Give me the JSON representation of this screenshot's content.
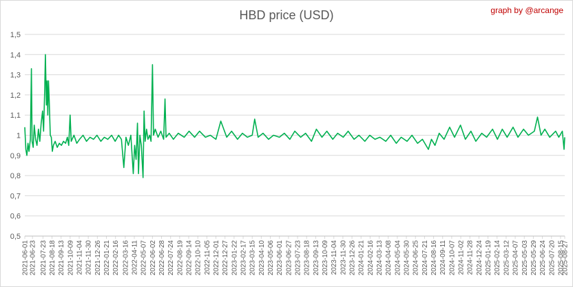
{
  "chart_data": {
    "type": "line",
    "title": "HBD price (USD)",
    "credit": "graph by @arcange",
    "xlabel": "",
    "ylabel": "",
    "ylim": [
      0.5,
      1.5
    ],
    "yticks": [
      "0,5",
      "0,6",
      "0,7",
      "0,8",
      "0,9",
      "1",
      "1,1",
      "1,2",
      "1,3",
      "1,4",
      "1,5"
    ],
    "grid": true,
    "legend": "none",
    "color": "#00b050",
    "x_tick_labels": [
      "2021-06-01",
      "2021-06-23",
      "2021-07-23",
      "2021-08-18",
      "2021-09-13",
      "2021-10-09",
      "2021-11-04",
      "2021-11-30",
      "2021-12-26",
      "2022-01-21",
      "2022-02-16",
      "2022-03-16",
      "2022-04-11",
      "2022-05-07",
      "2022-06-02",
      "2022-06-28",
      "2022-07-24",
      "2022-08-19",
      "2022-09-14",
      "2022-10-10",
      "2022-11-05",
      "2022-12-01",
      "2022-12-27",
      "2023-01-22",
      "2023-02-17",
      "2023-03-15",
      "2023-04-10",
      "2023-05-06",
      "2023-06-01",
      "2023-06-27",
      "2023-07-23",
      "2023-08-18",
      "2023-09-13",
      "2023-10-09",
      "2023-11-04",
      "2023-11-30",
      "2023-12-26",
      "2024-01-21",
      "2024-02-16",
      "2024-03-13",
      "2024-04-08",
      "2024-05-04",
      "2024-05-30",
      "2024-06-25",
      "2024-07-21",
      "2024-08-16",
      "2024-09-11",
      "2024-10-07",
      "2024-11-02",
      "2024-11-28",
      "2024-12-24",
      "2025-01-19",
      "2025-02-14",
      "2025-03-12",
      "2025-04-07",
      "2025-05-03",
      "2025-05-29",
      "2025-06-24",
      "2025-07-20",
      "2025-08-15",
      "2025-08-27"
    ],
    "series": [
      {
        "points": [
          [
            "2021-06-01",
            1.04
          ],
          [
            "2021-06-04",
            0.93
          ],
          [
            "2021-06-07",
            0.9
          ],
          [
            "2021-06-10",
            0.96
          ],
          [
            "2021-06-13",
            0.92
          ],
          [
            "2021-06-17",
            0.98
          ],
          [
            "2021-06-20",
            1.33
          ],
          [
            "2021-06-22",
            0.97
          ],
          [
            "2021-06-25",
            0.94
          ],
          [
            "2021-06-28",
            1.05
          ],
          [
            "2021-07-02",
            0.98
          ],
          [
            "2021-07-06",
            0.95
          ],
          [
            "2021-07-10",
            1.03
          ],
          [
            "2021-07-14",
            0.97
          ],
          [
            "2021-07-18",
            1.06
          ],
          [
            "2021-07-22",
            1.12
          ],
          [
            "2021-07-25",
            1.02
          ],
          [
            "2021-07-28",
            1.22
          ],
          [
            "2021-07-30",
            1.4
          ],
          [
            "2021-08-02",
            1.15
          ],
          [
            "2021-08-04",
            1.27
          ],
          [
            "2021-08-06",
            1.1
          ],
          [
            "2021-08-08",
            1.27
          ],
          [
            "2021-08-10",
            1.17
          ],
          [
            "2021-08-13",
            1.0
          ],
          [
            "2021-08-16",
            0.99
          ],
          [
            "2021-08-19",
            0.92
          ],
          [
            "2021-08-22",
            0.95
          ],
          [
            "2021-08-27",
            0.97
          ],
          [
            "2021-09-02",
            0.94
          ],
          [
            "2021-09-08",
            0.96
          ],
          [
            "2021-09-14",
            0.95
          ],
          [
            "2021-09-20",
            0.97
          ],
          [
            "2021-09-26",
            0.96
          ],
          [
            "2021-10-01",
            0.99
          ],
          [
            "2021-10-05",
            0.95
          ],
          [
            "2021-10-09",
            1.1
          ],
          [
            "2021-10-12",
            0.97
          ],
          [
            "2021-10-20",
            1.0
          ],
          [
            "2021-10-28",
            0.96
          ],
          [
            "2021-11-05",
            0.98
          ],
          [
            "2021-11-15",
            1.0
          ],
          [
            "2021-11-25",
            0.97
          ],
          [
            "2021-12-05",
            0.99
          ],
          [
            "2021-12-15",
            0.98
          ],
          [
            "2021-12-25",
            1.0
          ],
          [
            "2022-01-05",
            0.97
          ],
          [
            "2022-01-15",
            0.99
          ],
          [
            "2022-01-25",
            0.98
          ],
          [
            "2022-02-05",
            1.0
          ],
          [
            "2022-02-15",
            0.97
          ],
          [
            "2022-02-25",
            1.0
          ],
          [
            "2022-03-05",
            0.98
          ],
          [
            "2022-03-12",
            0.84
          ],
          [
            "2022-03-18",
            0.99
          ],
          [
            "2022-03-25",
            0.95
          ],
          [
            "2022-04-01",
            1.0
          ],
          [
            "2022-04-08",
            0.81
          ],
          [
            "2022-04-12",
            0.95
          ],
          [
            "2022-04-16",
            0.88
          ],
          [
            "2022-04-20",
            1.06
          ],
          [
            "2022-04-23",
            0.81
          ],
          [
            "2022-04-27",
            1.0
          ],
          [
            "2022-05-01",
            0.95
          ],
          [
            "2022-05-06",
            0.79
          ],
          [
            "2022-05-09",
            1.12
          ],
          [
            "2022-05-12",
            0.97
          ],
          [
            "2022-05-16",
            1.03
          ],
          [
            "2022-05-20",
            0.98
          ],
          [
            "2022-05-25",
            1.0
          ],
          [
            "2022-05-29",
            0.97
          ],
          [
            "2022-06-02",
            1.35
          ],
          [
            "2022-06-05",
            1.0
          ],
          [
            "2022-06-10",
            1.03
          ],
          [
            "2022-06-18",
            0.99
          ],
          [
            "2022-06-26",
            1.02
          ],
          [
            "2022-07-04",
            0.98
          ],
          [
            "2022-07-08",
            1.18
          ],
          [
            "2022-07-11",
            0.99
          ],
          [
            "2022-07-20",
            1.01
          ],
          [
            "2022-08-01",
            0.98
          ],
          [
            "2022-08-15",
            1.01
          ],
          [
            "2022-09-01",
            0.99
          ],
          [
            "2022-09-15",
            1.02
          ],
          [
            "2022-10-01",
            0.99
          ],
          [
            "2022-10-15",
            1.02
          ],
          [
            "2022-11-01",
            0.99
          ],
          [
            "2022-11-15",
            1.0
          ],
          [
            "2022-12-01",
            0.98
          ],
          [
            "2022-12-15",
            1.07
          ],
          [
            "2023-01-01",
            0.99
          ],
          [
            "2023-01-15",
            1.02
          ],
          [
            "2023-02-01",
            0.98
          ],
          [
            "2023-02-15",
            1.01
          ],
          [
            "2023-03-01",
            0.99
          ],
          [
            "2023-03-15",
            1.0
          ],
          [
            "2023-03-22",
            1.08
          ],
          [
            "2023-04-01",
            0.99
          ],
          [
            "2023-04-15",
            1.01
          ],
          [
            "2023-05-01",
            0.98
          ],
          [
            "2023-05-15",
            1.0
          ],
          [
            "2023-06-01",
            0.99
          ],
          [
            "2023-06-15",
            1.01
          ],
          [
            "2023-07-01",
            0.98
          ],
          [
            "2023-07-15",
            1.02
          ],
          [
            "2023-08-01",
            0.99
          ],
          [
            "2023-08-15",
            1.01
          ],
          [
            "2023-09-01",
            0.97
          ],
          [
            "2023-09-15",
            1.03
          ],
          [
            "2023-10-01",
            0.99
          ],
          [
            "2023-10-15",
            1.02
          ],
          [
            "2023-11-01",
            0.98
          ],
          [
            "2023-11-15",
            1.01
          ],
          [
            "2023-12-01",
            0.99
          ],
          [
            "2023-12-15",
            1.02
          ],
          [
            "2024-01-01",
            0.98
          ],
          [
            "2024-01-15",
            1.0
          ],
          [
            "2024-02-01",
            0.97
          ],
          [
            "2024-02-15",
            1.0
          ],
          [
            "2024-03-01",
            0.98
          ],
          [
            "2024-03-15",
            0.99
          ],
          [
            "2024-04-01",
            0.97
          ],
          [
            "2024-04-15",
            1.0
          ],
          [
            "2024-05-01",
            0.96
          ],
          [
            "2024-05-15",
            0.99
          ],
          [
            "2024-06-01",
            0.97
          ],
          [
            "2024-06-15",
            1.0
          ],
          [
            "2024-07-01",
            0.96
          ],
          [
            "2024-07-15",
            0.98
          ],
          [
            "2024-08-01",
            0.93
          ],
          [
            "2024-08-10",
            0.98
          ],
          [
            "2024-08-20",
            0.95
          ],
          [
            "2024-09-01",
            1.01
          ],
          [
            "2024-09-15",
            0.98
          ],
          [
            "2024-10-01",
            1.04
          ],
          [
            "2024-10-15",
            0.99
          ],
          [
            "2024-11-01",
            1.05
          ],
          [
            "2024-11-15",
            0.98
          ],
          [
            "2024-12-01",
            1.02
          ],
          [
            "2024-12-15",
            0.97
          ],
          [
            "2025-01-01",
            1.01
          ],
          [
            "2025-01-15",
            0.99
          ],
          [
            "2025-02-01",
            1.03
          ],
          [
            "2025-02-15",
            0.98
          ],
          [
            "2025-03-01",
            1.03
          ],
          [
            "2025-03-15",
            0.99
          ],
          [
            "2025-04-01",
            1.04
          ],
          [
            "2025-04-15",
            0.99
          ],
          [
            "2025-05-01",
            1.03
          ],
          [
            "2025-05-15",
            1.0
          ],
          [
            "2025-06-01",
            1.02
          ],
          [
            "2025-06-10",
            1.09
          ],
          [
            "2025-06-20",
            1.0
          ],
          [
            "2025-07-01",
            1.03
          ],
          [
            "2025-07-15",
            0.99
          ],
          [
            "2025-08-01",
            1.02
          ],
          [
            "2025-08-10",
            0.99
          ],
          [
            "2025-08-20",
            1.02
          ],
          [
            "2025-08-25",
            0.93
          ],
          [
            "2025-08-27",
            0.99
          ]
        ]
      }
    ]
  }
}
